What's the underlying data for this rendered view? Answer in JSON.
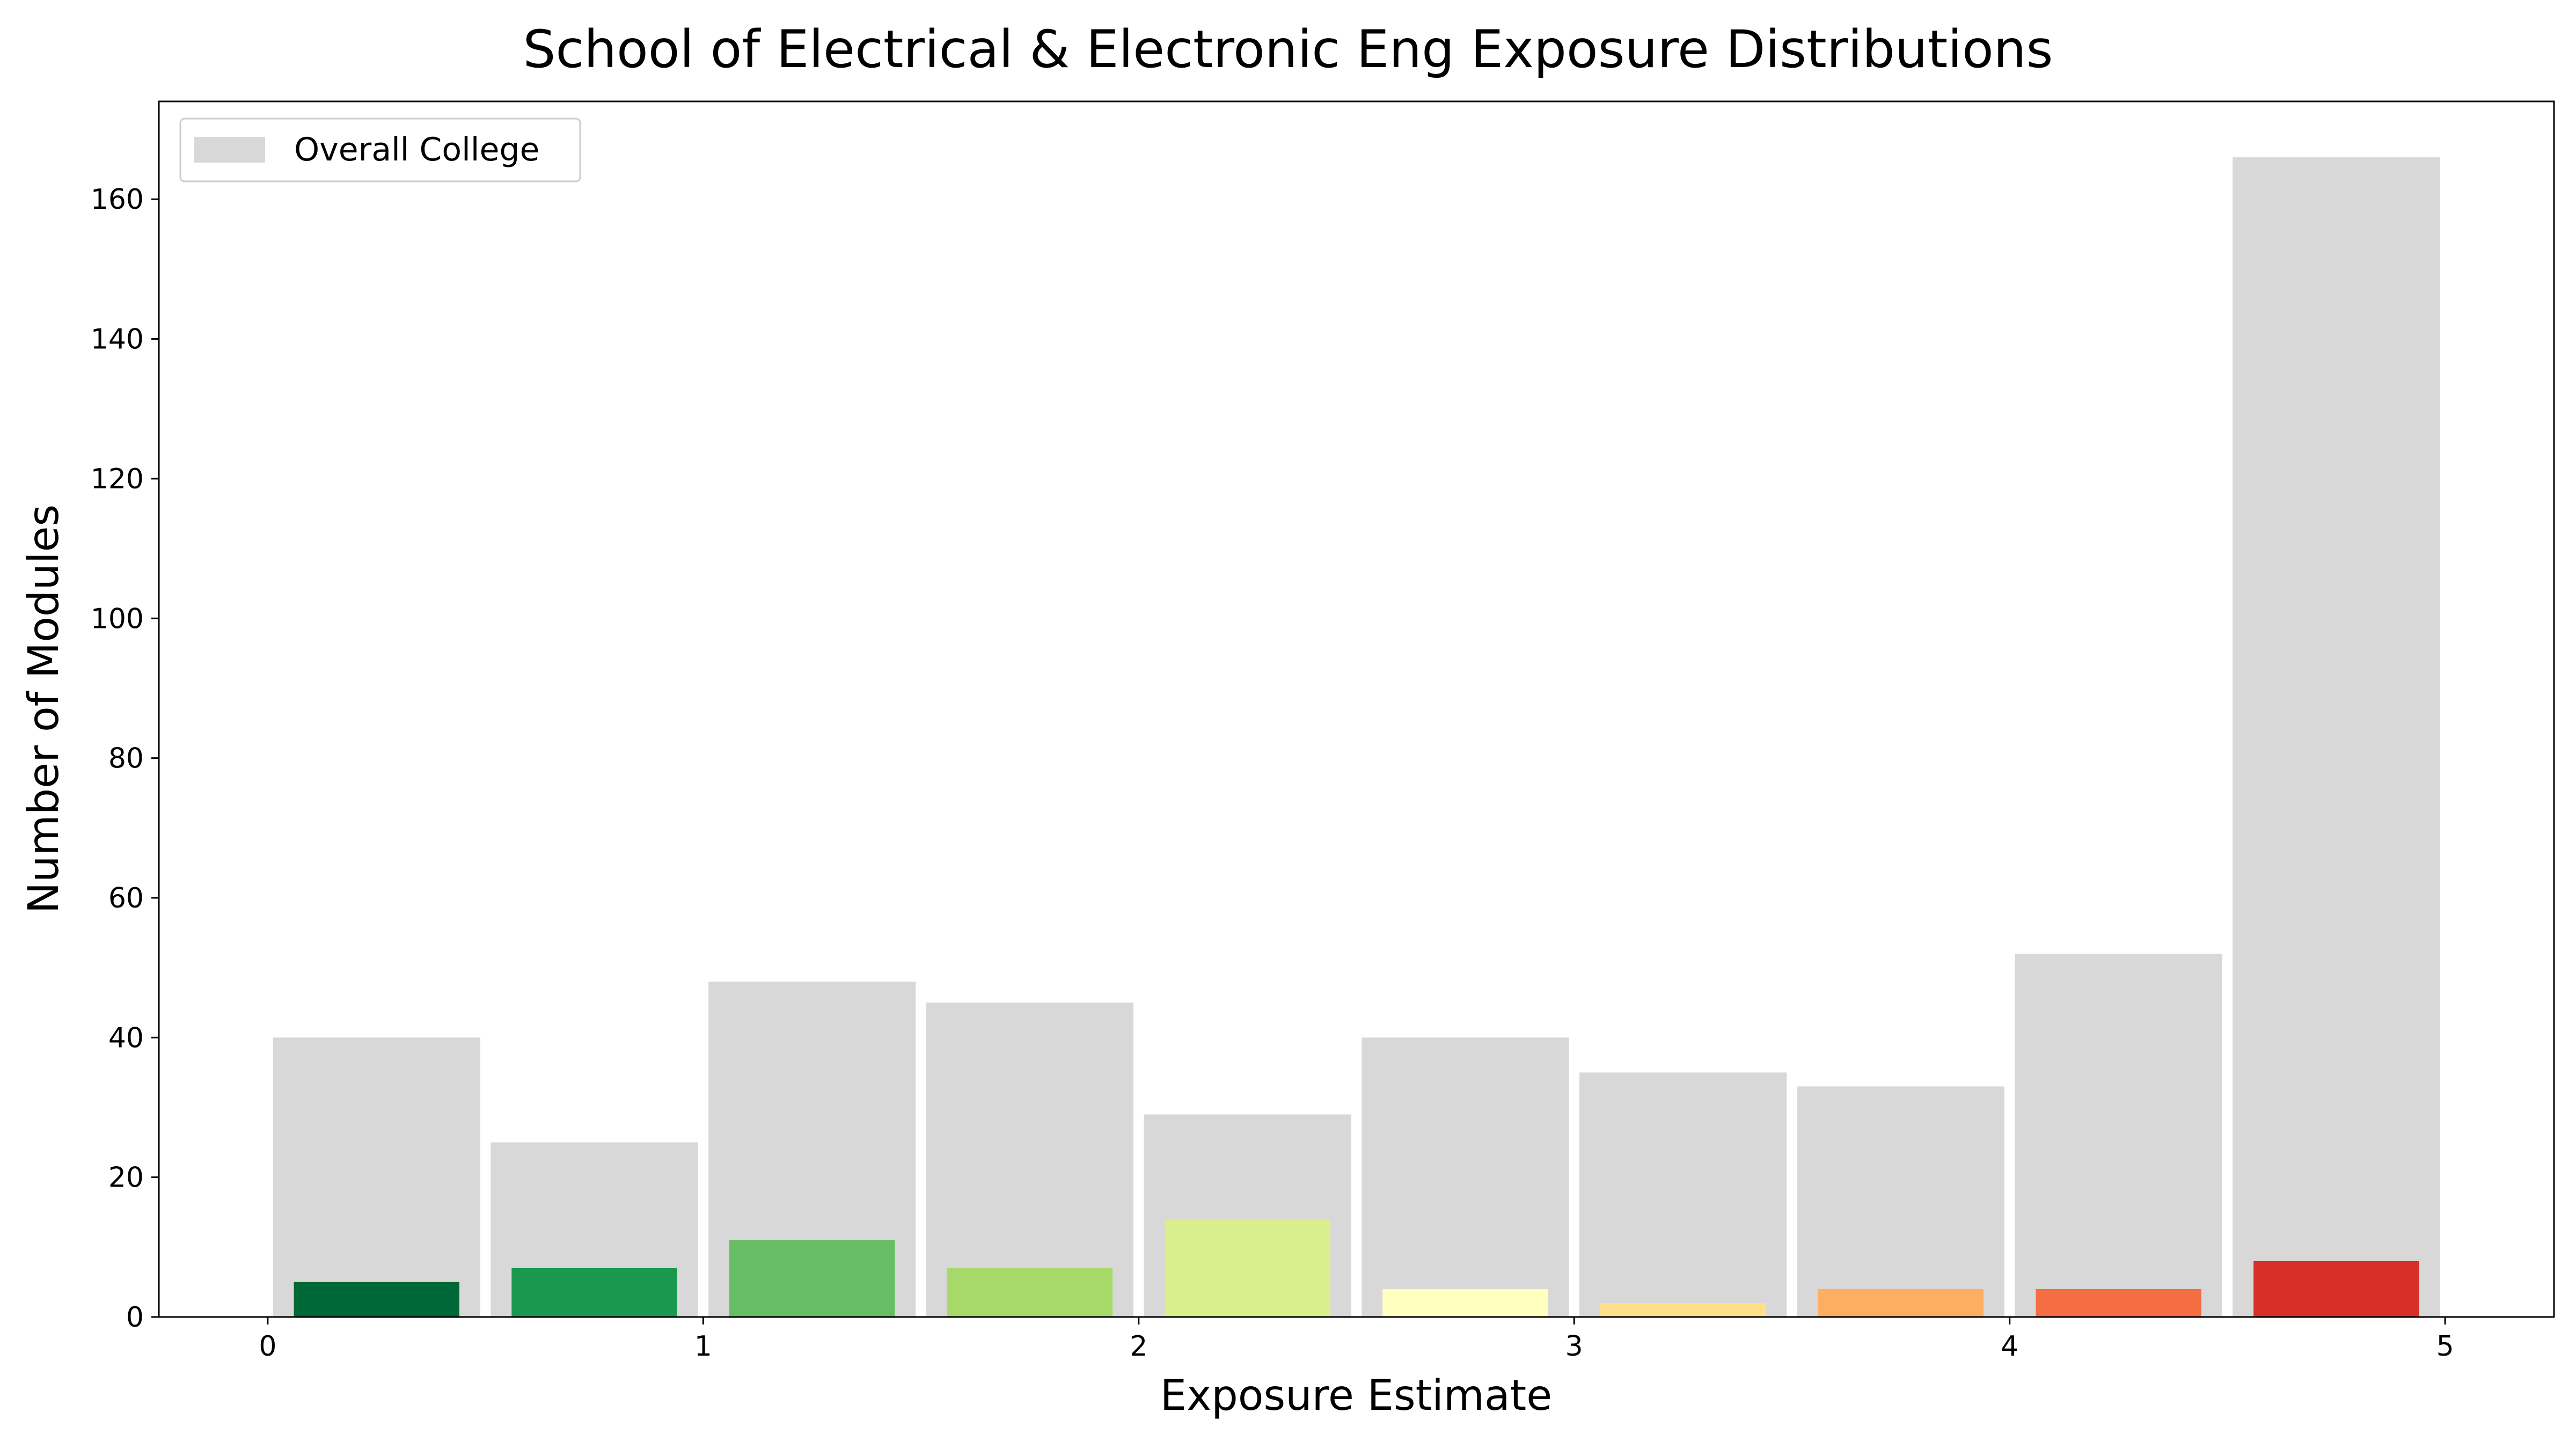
{
  "chart_data": {
    "type": "bar",
    "title": "School of Electrical & Electronic Eng Exposure Distributions",
    "xlabel": "Exposure Estimate",
    "ylabel": "Number of Modules",
    "xlim": [
      -0.25,
      5.25
    ],
    "ylim": [
      0,
      174
    ],
    "xticks": [
      0,
      1,
      2,
      3,
      4,
      5
    ],
    "yticks": [
      0,
      20,
      40,
      60,
      80,
      100,
      120,
      140,
      160
    ],
    "grid": false,
    "legend": {
      "position": "upper-left",
      "entries": [
        "Overall College"
      ]
    },
    "bin_width": 0.5,
    "bins": [
      [
        0.0,
        0.5
      ],
      [
        0.5,
        1.0
      ],
      [
        1.0,
        1.5
      ],
      [
        1.5,
        2.0
      ],
      [
        2.0,
        2.5
      ],
      [
        2.5,
        3.0
      ],
      [
        3.0,
        3.5
      ],
      [
        3.5,
        4.0
      ],
      [
        4.0,
        4.5
      ],
      [
        4.5,
        5.0
      ]
    ],
    "series": [
      {
        "name": "Overall College",
        "color": "#d8d8d8",
        "values": [
          40,
          25,
          48,
          45,
          29,
          40,
          35,
          33,
          52,
          166
        ]
      },
      {
        "colors": [
          "#006837",
          "#1a9850",
          "#66bd63",
          "#a6d96a",
          "#d9ef8b",
          "#ffffbf",
          "#fee08b",
          "#fdae61",
          "#f46d43",
          "#d73027"
        ],
        "values": [
          5,
          7,
          11,
          7,
          14,
          4,
          2,
          4,
          4,
          8
        ]
      }
    ]
  }
}
